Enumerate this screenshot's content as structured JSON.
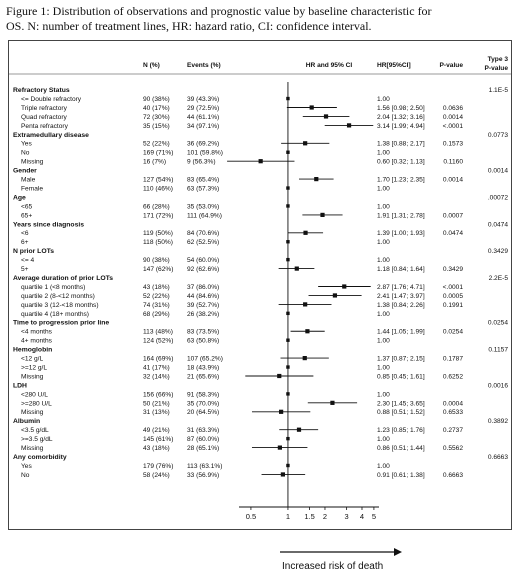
{
  "caption": "Figure 1: Distribution of observations and prognostic value by baseline characteristic for OS. N: number of treatment lines, HR: hazard ratio, CI: confidence interval.",
  "headers": {
    "n": "N (%)",
    "events": "Events (%)",
    "plot": "HR and 95% CI",
    "hrci": "HR[95%CI]",
    "pval": "P-value",
    "type3_line1": "Type 3",
    "type3_line2": "P-value"
  },
  "arrow_label": "Increased risk of death",
  "chart_data": {
    "type": "forest",
    "x_scale": "log",
    "xlim": [
      0.4,
      5.5
    ],
    "x_ticks": [
      0.5,
      1,
      1.5,
      2,
      3,
      4,
      5
    ],
    "x_tick_labels": [
      "0.5",
      "1",
      "1.5",
      "2",
      "3",
      "4",
      "5"
    ],
    "reference_line": 1,
    "groups": [
      {
        "name": "Refractory Status",
        "type3_p": "1.1E-5",
        "rows": [
          {
            "label": "<= Double refractory",
            "n": "90 (38%)",
            "events": "39 (43.3%)",
            "hr": 1.0,
            "hr_text": "1.00",
            "p": ""
          },
          {
            "label": "Triple refractory",
            "n": "40 (17%)",
            "events": "29 (72.5%)",
            "hr": 1.56,
            "lo": 0.98,
            "hi": 2.5,
            "hr_text": "1.56 [0.98; 2.50]",
            "p": "0.0636"
          },
          {
            "label": "Quad refractory",
            "n": "72 (30%)",
            "events": "44 (61.1%)",
            "hr": 2.04,
            "lo": 1.32,
            "hi": 3.16,
            "hr_text": "2.04 [1.32; 3.16]",
            "p": "0.0014"
          },
          {
            "label": "Penta refractory",
            "n": "35 (15%)",
            "events": "34 (97.1%)",
            "hr": 3.14,
            "lo": 1.99,
            "hi": 4.94,
            "hr_text": "3.14 [1.99; 4.94]",
            "p": "<.0001"
          }
        ]
      },
      {
        "name": "Extramedullary disease",
        "type3_p": "0.0773",
        "rows": [
          {
            "label": "Yes",
            "n": "52 (22%)",
            "events": "36 (69.2%)",
            "hr": 1.38,
            "lo": 0.88,
            "hi": 2.17,
            "hr_text": "1.38 [0.88; 2.17]",
            "p": "0.1573"
          },
          {
            "label": "No",
            "n": "169 (71%)",
            "events": "101 (59.8%)",
            "hr": 1.0,
            "hr_text": "1.00",
            "p": ""
          },
          {
            "label": "Missing",
            "n": "16 (7%)",
            "events": "9 (56.3%)",
            "hr": 0.6,
            "lo": 0.32,
            "hi": 1.13,
            "hr_text": "0.60 [0.32; 1.13]",
            "p": "0.1160"
          }
        ]
      },
      {
        "name": "Gender",
        "type3_p": "0.0014",
        "rows": [
          {
            "label": "Male",
            "n": "127 (54%)",
            "events": "83 (65.4%)",
            "hr": 1.7,
            "lo": 1.23,
            "hi": 2.35,
            "hr_text": "1.70 [1.23; 2.35]",
            "p": "0.0014"
          },
          {
            "label": "Female",
            "n": "110 (46%)",
            "events": "63 (57.3%)",
            "hr": 1.0,
            "hr_text": "1.00",
            "p": ""
          }
        ]
      },
      {
        "name": "Age",
        "type3_p": ".00072",
        "rows": [
          {
            "label": "<65",
            "n": "66 (28%)",
            "events": "35 (53.0%)",
            "hr": 1.0,
            "hr_text": "1.00",
            "p": ""
          },
          {
            "label": "65+",
            "n": "171 (72%)",
            "events": "111 (64.9%)",
            "hr": 1.91,
            "lo": 1.31,
            "hi": 2.78,
            "hr_text": "1.91 [1.31; 2.78]",
            "p": "0.0007"
          }
        ]
      },
      {
        "name": "Years since diagnosis",
        "type3_p": "0.0474",
        "rows": [
          {
            "label": "<6",
            "n": "119 (50%)",
            "events": "84 (70.6%)",
            "hr": 1.39,
            "lo": 1.0,
            "hi": 1.93,
            "hr_text": "1.39 [1.00; 1.93]",
            "p": "0.0474"
          },
          {
            "label": "6+",
            "n": "118 (50%)",
            "events": "62 (52.5%)",
            "hr": 1.0,
            "hr_text": "1.00",
            "p": ""
          }
        ]
      },
      {
        "name": "N prior LOTs",
        "type3_p": "0.3429",
        "rows": [
          {
            "label": "<= 4",
            "n": "90 (38%)",
            "events": "54 (60.0%)",
            "hr": 1.0,
            "hr_text": "1.00",
            "p": ""
          },
          {
            "label": "5+",
            "n": "147 (62%)",
            "events": "92 (62.6%)",
            "hr": 1.18,
            "lo": 0.84,
            "hi": 1.64,
            "hr_text": "1.18 [0.84; 1.64]",
            "p": "0.3429"
          }
        ]
      },
      {
        "name": "Average duration of prior LOTs",
        "type3_p": "2.2E-5",
        "rows": [
          {
            "label": "quartile 1 (<8 months)",
            "n": "43 (18%)",
            "events": "37 (86.0%)",
            "hr": 2.87,
            "lo": 1.76,
            "hi": 4.71,
            "hr_text": "2.87 [1.76; 4.71]",
            "p": "<.0001"
          },
          {
            "label": "quartile 2 (8-<12 months)",
            "n": "52 (22%)",
            "events": "44 (84.6%)",
            "hr": 2.41,
            "lo": 1.47,
            "hi": 3.97,
            "hr_text": "2.41 [1.47; 3.97]",
            "p": "0.0005"
          },
          {
            "label": "quartile 3 (12-<18 months)",
            "n": "74 (31%)",
            "events": "39 (52.7%)",
            "hr": 1.38,
            "lo": 0.84,
            "hi": 2.26,
            "hr_text": "1.38 [0.84; 2.26]",
            "p": "0.1991"
          },
          {
            "label": "quartile 4 (18+ months)",
            "n": "68 (29%)",
            "events": "26 (38.2%)",
            "hr": 1.0,
            "hr_text": "1.00",
            "p": ""
          }
        ]
      },
      {
        "name": "Time to progression prior line",
        "type3_p": "0.0254",
        "rows": [
          {
            "label": "<4 months",
            "n": "113 (48%)",
            "events": "83 (73.5%)",
            "hr": 1.44,
            "lo": 1.05,
            "hi": 1.99,
            "hr_text": "1.44 [1.05; 1.99]",
            "p": "0.0254"
          },
          {
            "label": "4+ months",
            "n": "124 (52%)",
            "events": "63 (50.8%)",
            "hr": 1.0,
            "hr_text": "1.00",
            "p": ""
          }
        ]
      },
      {
        "name": "Hemoglobin",
        "type3_p": "0.1157",
        "rows": [
          {
            "label": "<12 g/L",
            "n": "164 (69%)",
            "events": "107 (65.2%)",
            "hr": 1.37,
            "lo": 0.87,
            "hi": 2.15,
            "hr_text": "1.37 [0.87; 2.15]",
            "p": "0.1787"
          },
          {
            "label": ">=12 g/L",
            "n": "41 (17%)",
            "events": "18 (43.9%)",
            "hr": 1.0,
            "hr_text": "1.00",
            "p": ""
          },
          {
            "label": "Missing",
            "n": "32 (14%)",
            "events": "21 (65.6%)",
            "hr": 0.85,
            "lo": 0.45,
            "hi": 1.61,
            "hr_text": "0.85 [0.45; 1.61]",
            "p": "0.6252"
          }
        ]
      },
      {
        "name": "LDH",
        "type3_p": "0.0016",
        "rows": [
          {
            "label": "<280 U/L",
            "n": "156 (66%)",
            "events": "91 (58.3%)",
            "hr": 1.0,
            "hr_text": "1.00",
            "p": ""
          },
          {
            "label": ">=280 U/L",
            "n": "50 (21%)",
            "events": "35 (70.0%)",
            "hr": 2.3,
            "lo": 1.45,
            "hi": 3.65,
            "hr_text": "2.30 [1.45; 3.65]",
            "p": "0.0004"
          },
          {
            "label": "Missing",
            "n": "31 (13%)",
            "events": "20 (64.5%)",
            "hr": 0.88,
            "lo": 0.51,
            "hi": 1.52,
            "hr_text": "0.88 [0.51; 1.52]",
            "p": "0.6533"
          }
        ]
      },
      {
        "name": "Albumin",
        "type3_p": "0.3892",
        "rows": [
          {
            "label": "<3.5 g/dL",
            "n": "49 (21%)",
            "events": "31 (63.3%)",
            "hr": 1.23,
            "lo": 0.85,
            "hi": 1.76,
            "hr_text": "1.23 [0.85; 1.76]",
            "p": "0.2737"
          },
          {
            "label": ">=3.5 g/dL",
            "n": "145 (61%)",
            "events": "87 (60.0%)",
            "hr": 1.0,
            "hr_text": "1.00",
            "p": ""
          },
          {
            "label": "Missing",
            "n": "43 (18%)",
            "events": "28 (65.1%)",
            "hr": 0.86,
            "lo": 0.51,
            "hi": 1.44,
            "hr_text": "0.86 [0.51; 1.44]",
            "p": "0.5562"
          }
        ]
      },
      {
        "name": "Any comorbidity",
        "type3_p": "0.6663",
        "rows": [
          {
            "label": "Yes",
            "n": "179 (76%)",
            "events": "113 (63.1%)",
            "hr": 1.0,
            "hr_text": "1.00",
            "p": ""
          },
          {
            "label": "No",
            "n": "58 (24%)",
            "events": "33 (56.9%)",
            "hr": 0.91,
            "lo": 0.61,
            "hi": 1.38,
            "hr_text": "0.91 [0.61; 1.38]",
            "p": "0.6663"
          }
        ]
      }
    ]
  }
}
